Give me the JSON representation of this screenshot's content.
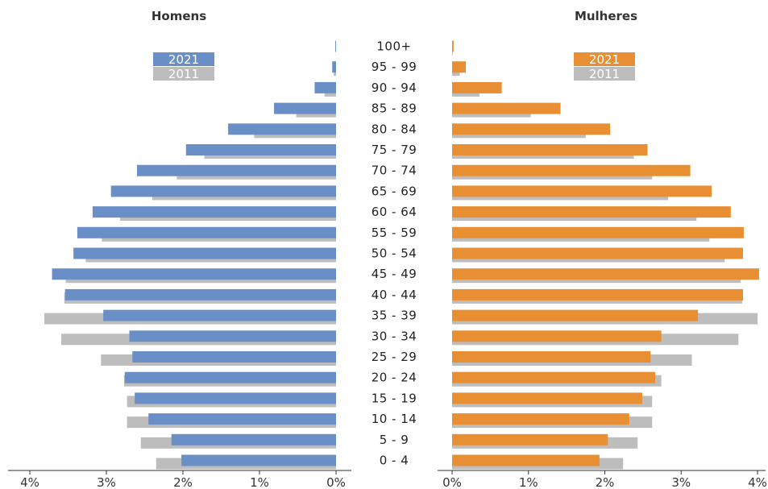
{
  "chart_data": {
    "type": "bar",
    "panels": [
      {
        "title": "Homens",
        "side": "left"
      },
      {
        "title": "Mulheres",
        "side": "right"
      }
    ],
    "categories": [
      "100+",
      "95 - 99",
      "90 - 94",
      "85 - 89",
      "80 - 84",
      "75 - 79",
      "70 - 74",
      "65 - 69",
      "60 - 64",
      "55 - 59",
      "50 - 54",
      "45 - 49",
      "40 - 44",
      "35 - 39",
      "30 - 34",
      "25 - 29",
      "20 - 24",
      "15 - 19",
      "10 - 14",
      "5 - 9",
      "0 - 4"
    ],
    "legend": {
      "year_current": "2021",
      "year_previous": "2011"
    },
    "xlim": [
      0,
      4
    ],
    "ticks": {
      "left": [
        "4%",
        "3%",
        "2%",
        "1%",
        "0%"
      ],
      "right": [
        "0%",
        "1%",
        "2%",
        "3%",
        "4%"
      ]
    },
    "series": [
      {
        "name": "2011",
        "panel": "Homens",
        "color": "#bdbdbd",
        "values": [
          0.0,
          0.03,
          0.15,
          0.52,
          1.07,
          1.72,
          2.08,
          2.4,
          2.82,
          3.06,
          3.27,
          3.53,
          3.55,
          3.81,
          3.59,
          3.07,
          2.77,
          2.73,
          2.73,
          2.55,
          2.35
        ]
      },
      {
        "name": "2021",
        "panel": "Homens",
        "color": "#6a8fc7",
        "values": [
          0.01,
          0.05,
          0.28,
          0.81,
          1.41,
          1.96,
          2.6,
          2.94,
          3.18,
          3.38,
          3.43,
          3.71,
          3.54,
          3.04,
          2.7,
          2.66,
          2.76,
          2.63,
          2.45,
          2.15,
          2.02
        ]
      },
      {
        "name": "2011",
        "panel": "Mulheres",
        "color": "#bdbdbd",
        "values": [
          0.01,
          0.1,
          0.36,
          1.03,
          1.75,
          2.38,
          2.62,
          2.83,
          3.2,
          3.37,
          3.57,
          3.78,
          3.8,
          4.0,
          3.75,
          3.14,
          2.74,
          2.62,
          2.62,
          2.43,
          2.24
        ]
      },
      {
        "name": "2021",
        "panel": "Mulheres",
        "color": "#e88f33",
        "values": [
          0.02,
          0.18,
          0.65,
          1.42,
          2.07,
          2.56,
          3.12,
          3.4,
          3.65,
          3.82,
          3.81,
          4.02,
          3.81,
          3.22,
          2.74,
          2.6,
          2.66,
          2.49,
          2.32,
          2.04,
          1.93
        ]
      }
    ]
  }
}
